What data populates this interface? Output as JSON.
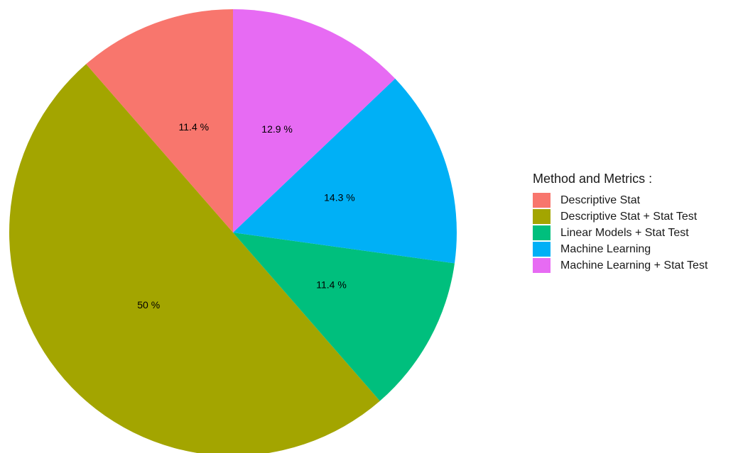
{
  "chart_data": {
    "type": "pie",
    "title": "",
    "legend": {
      "title": "Method and Metrics :",
      "position": "right"
    },
    "slices": [
      {
        "name": "Descriptive Stat",
        "value": 11.4,
        "label": "11.4 %",
        "color": "#F8766D"
      },
      {
        "name": "Descriptive Stat + Stat Test",
        "value": 50,
        "label": "50 %",
        "color": "#A3A500"
      },
      {
        "name": "Linear Models + Stat Test",
        "value": 11.4,
        "label": "11.4 %",
        "color": "#00BF7D"
      },
      {
        "name": "Machine Learning",
        "value": 14.3,
        "label": "14.3 %",
        "color": "#00B0F6"
      },
      {
        "name": "Machine Learning + Stat Test",
        "value": 12.9,
        "label": "12.9 %",
        "color": "#E76BF3"
      }
    ],
    "start": "top",
    "direction": "counterclockwise"
  }
}
